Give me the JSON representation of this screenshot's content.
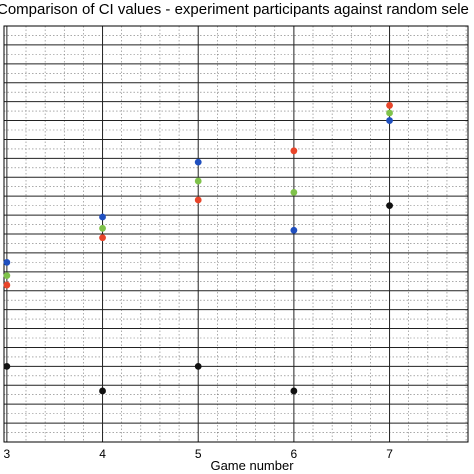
{
  "chart_data": {
    "type": "scatter",
    "title": "Comparison of CI values - experiment participants against random sele",
    "xlabel": "Game number",
    "ylabel": "",
    "x_ticks": [
      3,
      4,
      5,
      6,
      7
    ],
    "xlim": [
      2.97,
      7.82
    ],
    "ylim": [
      0,
      22
    ],
    "grid": true,
    "series": [
      {
        "color": "#1f4fbf",
        "x": [
          3,
          4,
          5,
          6,
          7
        ],
        "y": [
          9.5,
          11.9,
          14.8,
          11.2,
          17.0
        ]
      },
      {
        "color": "#e8452a",
        "x": [
          3,
          4,
          5,
          6,
          7
        ],
        "y": [
          8.3,
          10.8,
          12.8,
          15.4,
          17.8
        ]
      },
      {
        "color": "#7fc24a",
        "x": [
          3,
          4,
          5,
          6,
          7
        ],
        "y": [
          8.8,
          11.3,
          13.8,
          13.2,
          17.4
        ]
      },
      {
        "color": "#111111",
        "x": [
          3,
          4,
          5,
          6,
          7
        ],
        "y": [
          4.0,
          2.7,
          4.0,
          2.7,
          12.5
        ]
      }
    ]
  }
}
